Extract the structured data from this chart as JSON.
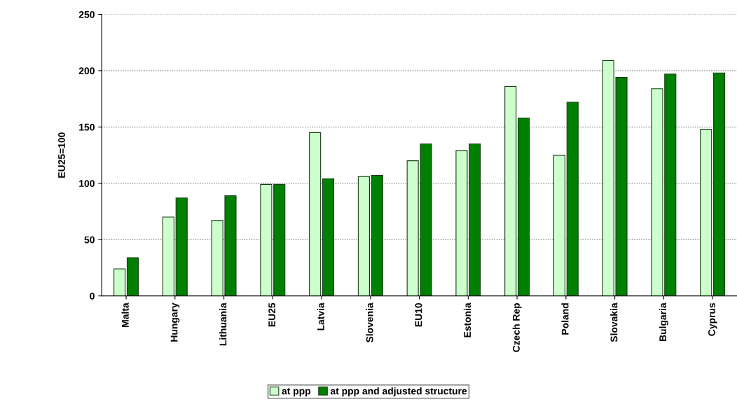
{
  "chart_data": {
    "type": "bar",
    "ylabel": "EU25=100",
    "categories": [
      "Malta",
      "Hungary",
      "Lithuania",
      "EU25",
      "Latvia",
      "Slovenia",
      "EU10",
      "Estonia",
      "Czech Rep",
      "Poland",
      "Slovakia",
      "Bulgaria",
      "Cyprus"
    ],
    "series": [
      {
        "name": "at ppp",
        "color": "#ccffcc",
        "values": [
          24,
          70,
          67,
          99,
          145,
          106,
          120,
          129,
          186,
          125,
          209,
          184,
          148
        ]
      },
      {
        "name": "at ppp and adjusted structure",
        "color": "#008000",
        "values": [
          34,
          87,
          89,
          99,
          104,
          107,
          135,
          135,
          158,
          172,
          194,
          197,
          198
        ]
      }
    ],
    "ylim": [
      0,
      250
    ],
    "yticks": [
      0,
      50,
      100,
      150,
      200,
      250
    ],
    "grid": "y",
    "legend": "bottom"
  }
}
